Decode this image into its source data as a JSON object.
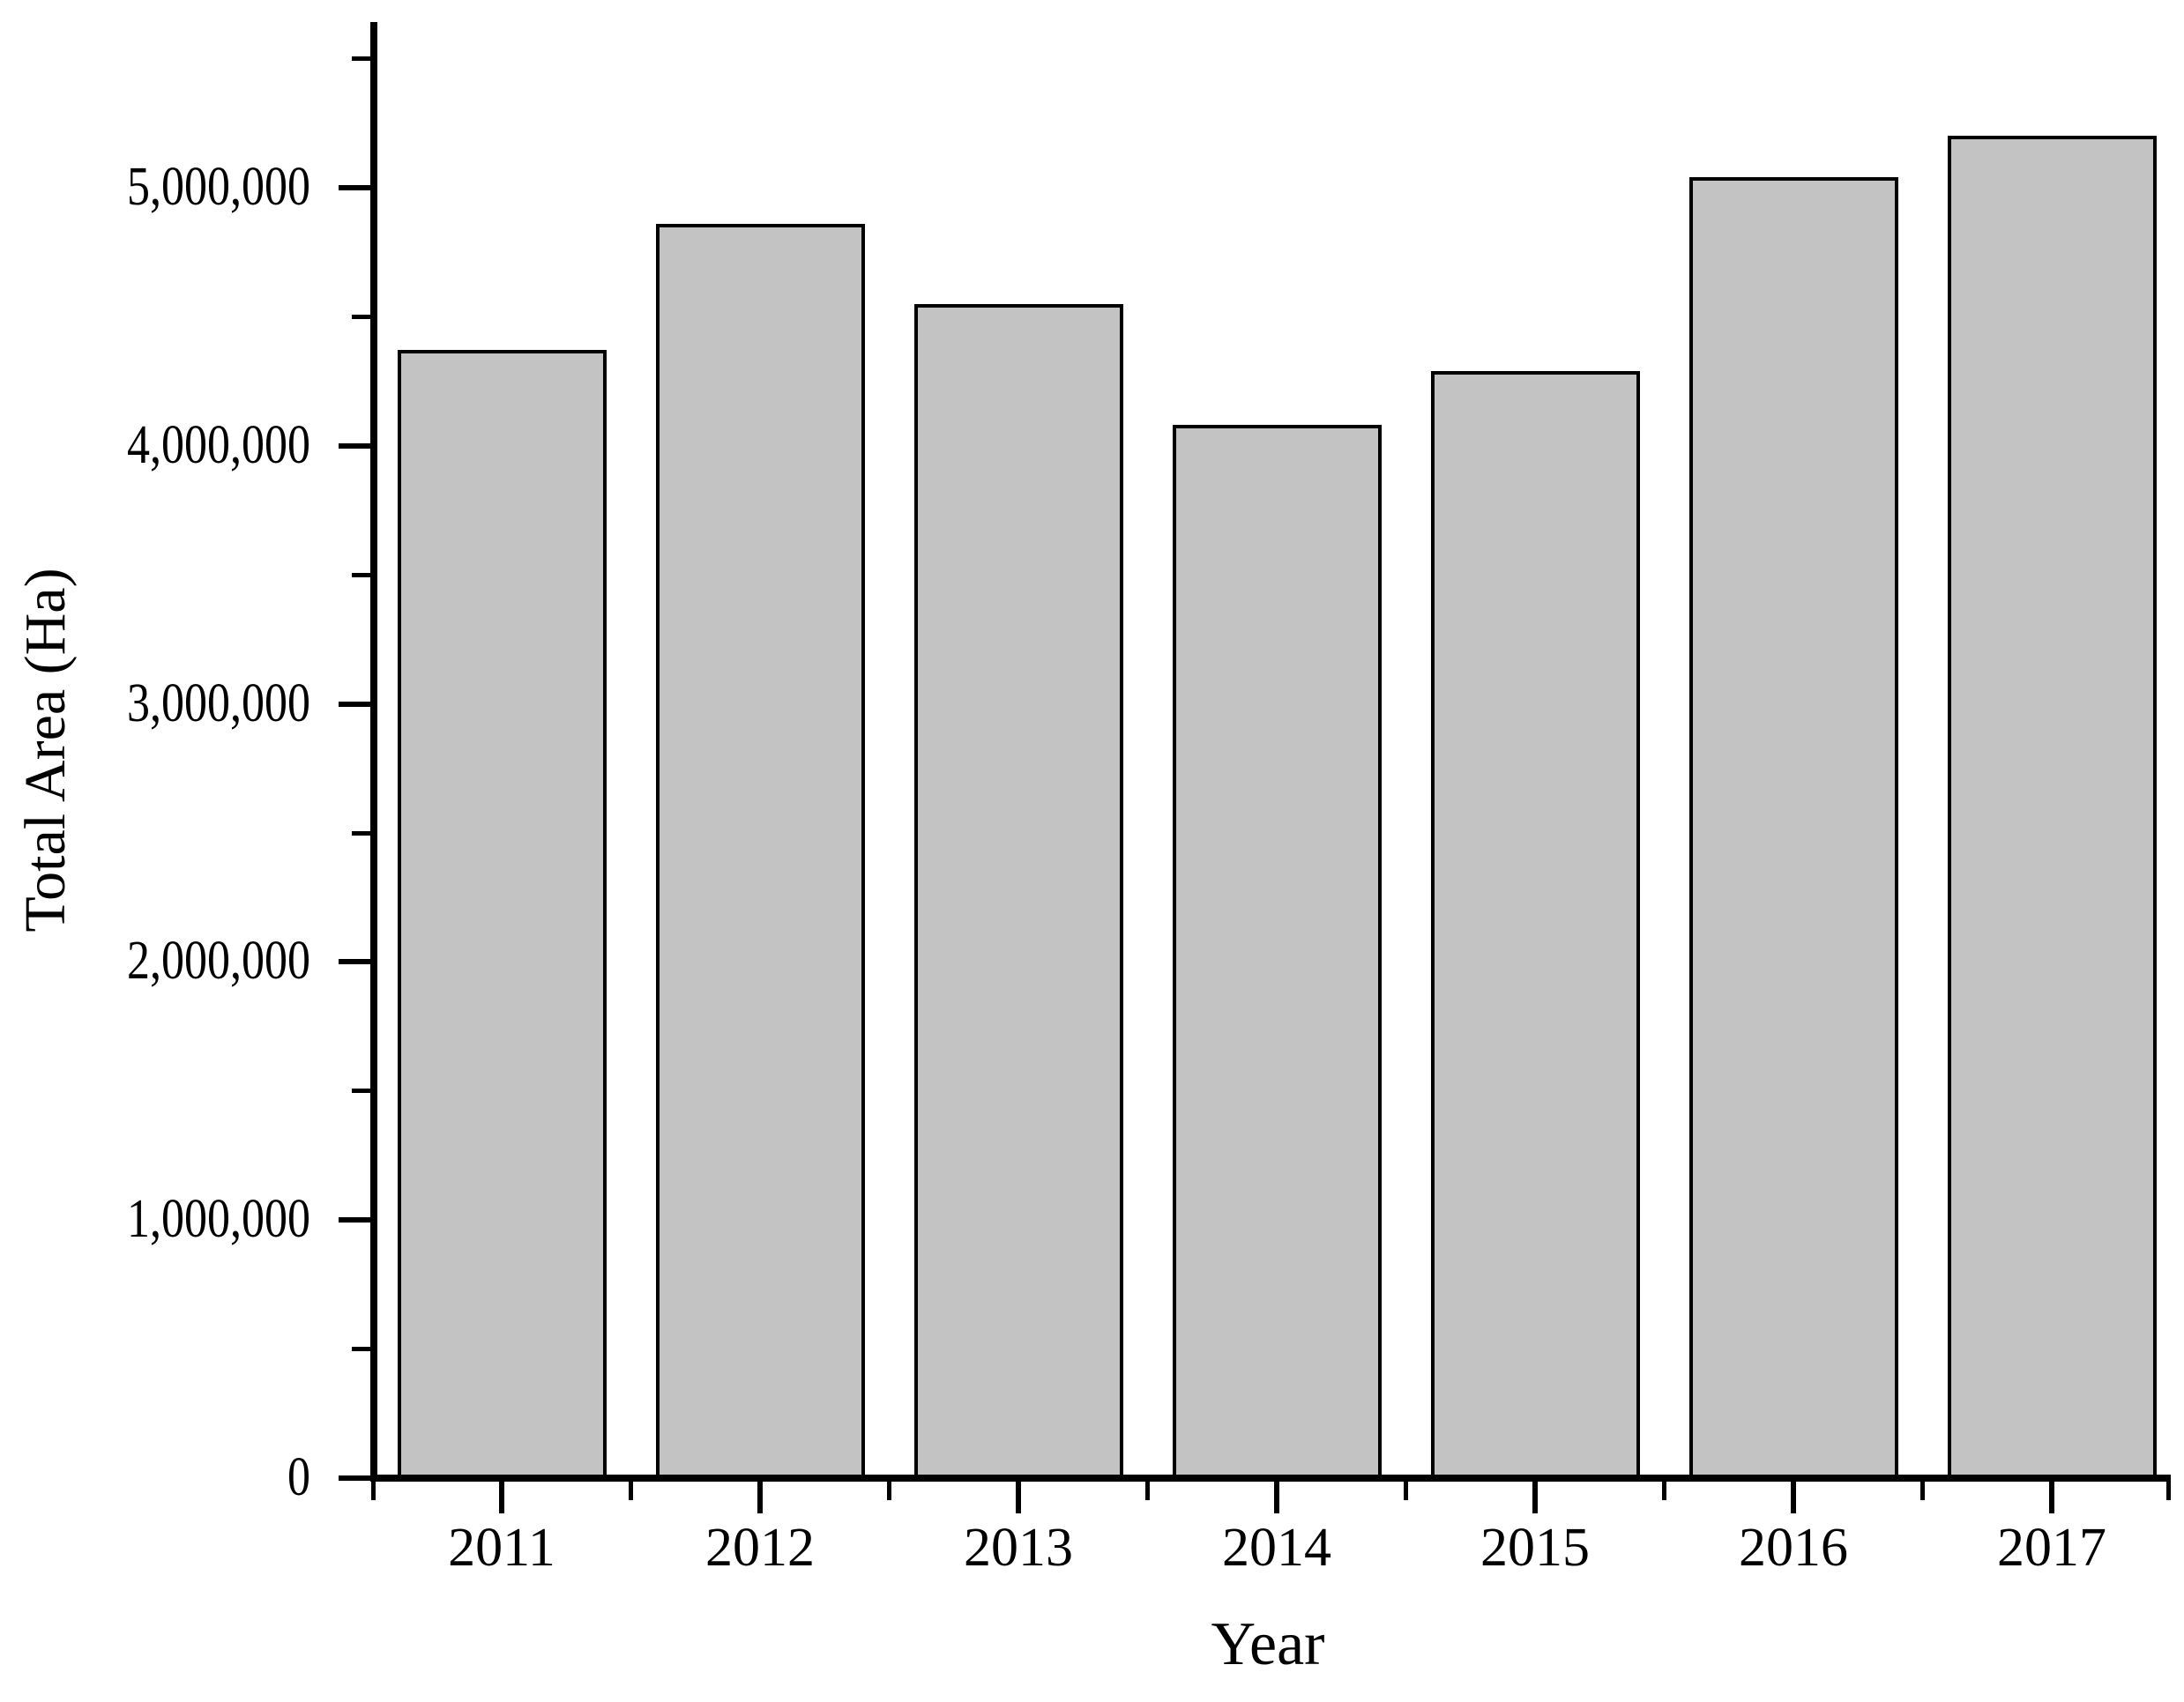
{
  "figure": {
    "background": "#FFFFFF"
  },
  "chart_data": {
    "type": "bar",
    "title": "",
    "categories": [
      "2011",
      "2012",
      "2013",
      "2014",
      "2015",
      "2016",
      "2017"
    ],
    "values": [
      4370000,
      4860000,
      4550000,
      4080000,
      4290000,
      5040000,
      5200000
    ],
    "xlabel": "Year",
    "ylabel": "Total Area (Ha)",
    "ylim": [
      0,
      5640000
    ],
    "y_major_tick_step": 1000000,
    "y_minor_tick_step": 500000,
    "y_tick_labels": [
      "0",
      "1,000,000",
      "2,000,000",
      "3,000,000",
      "4,000,000",
      "5,000,000"
    ],
    "grid": false,
    "legend": null,
    "bar_fill": "#C3C3C3",
    "bar_stroke": "#000000",
    "axis_color": "#000000",
    "text_color": "#000000"
  }
}
